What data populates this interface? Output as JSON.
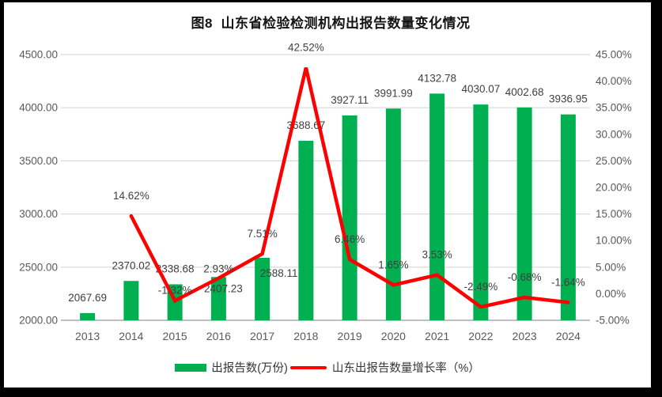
{
  "chart_data": {
    "type": "combo_bar_line",
    "title": "图8  山东省检验检测机构出报告数量变化情况",
    "categories": [
      "2013",
      "2014",
      "2015",
      "2016",
      "2017",
      "2018",
      "2019",
      "2020",
      "2021",
      "2022",
      "2023",
      "2024"
    ],
    "series": [
      {
        "name": "出报告数(万份)",
        "type": "bar",
        "axis": "left",
        "color": "#00B050",
        "values": [
          2067.69,
          2370.02,
          2338.68,
          2407.23,
          2588.11,
          3688.67,
          3927.11,
          3991.99,
          4132.78,
          4030.07,
          4002.68,
          3936.95
        ]
      },
      {
        "name": "山东出报告数量增长率（%）",
        "type": "line",
        "axis": "right",
        "color": "#FF0000",
        "values": [
          null,
          14.62,
          -1.32,
          2.93,
          7.51,
          42.52,
          6.46,
          1.65,
          3.53,
          -2.49,
          -0.68,
          -1.64
        ]
      }
    ],
    "axes": {
      "left": {
        "min": 2000,
        "max": 4500,
        "step": 500,
        "tick_labels": [
          "4500.00",
          "4000.00",
          "3500.00",
          "3000.00",
          "2500.00",
          "2000.00"
        ]
      },
      "right": {
        "min": -5,
        "max": 45,
        "step": 5,
        "tick_labels": [
          "45.00%",
          "40.00%",
          "35.00%",
          "30.00%",
          "25.00%",
          "20.00%",
          "15.00%",
          "10.00%",
          "5.00%",
          "0.00%",
          "-5.00%"
        ]
      }
    },
    "grid": true,
    "legend": {
      "position": "bottom",
      "entries": [
        "出报告数(万份)",
        "山东出报告数量增长率（%）"
      ]
    },
    "colors": {
      "gridline": "#d9d9d9",
      "axis_line": "#bfbfbf",
      "tick_text": "#595959",
      "label_text": "#3f3f3f"
    }
  }
}
